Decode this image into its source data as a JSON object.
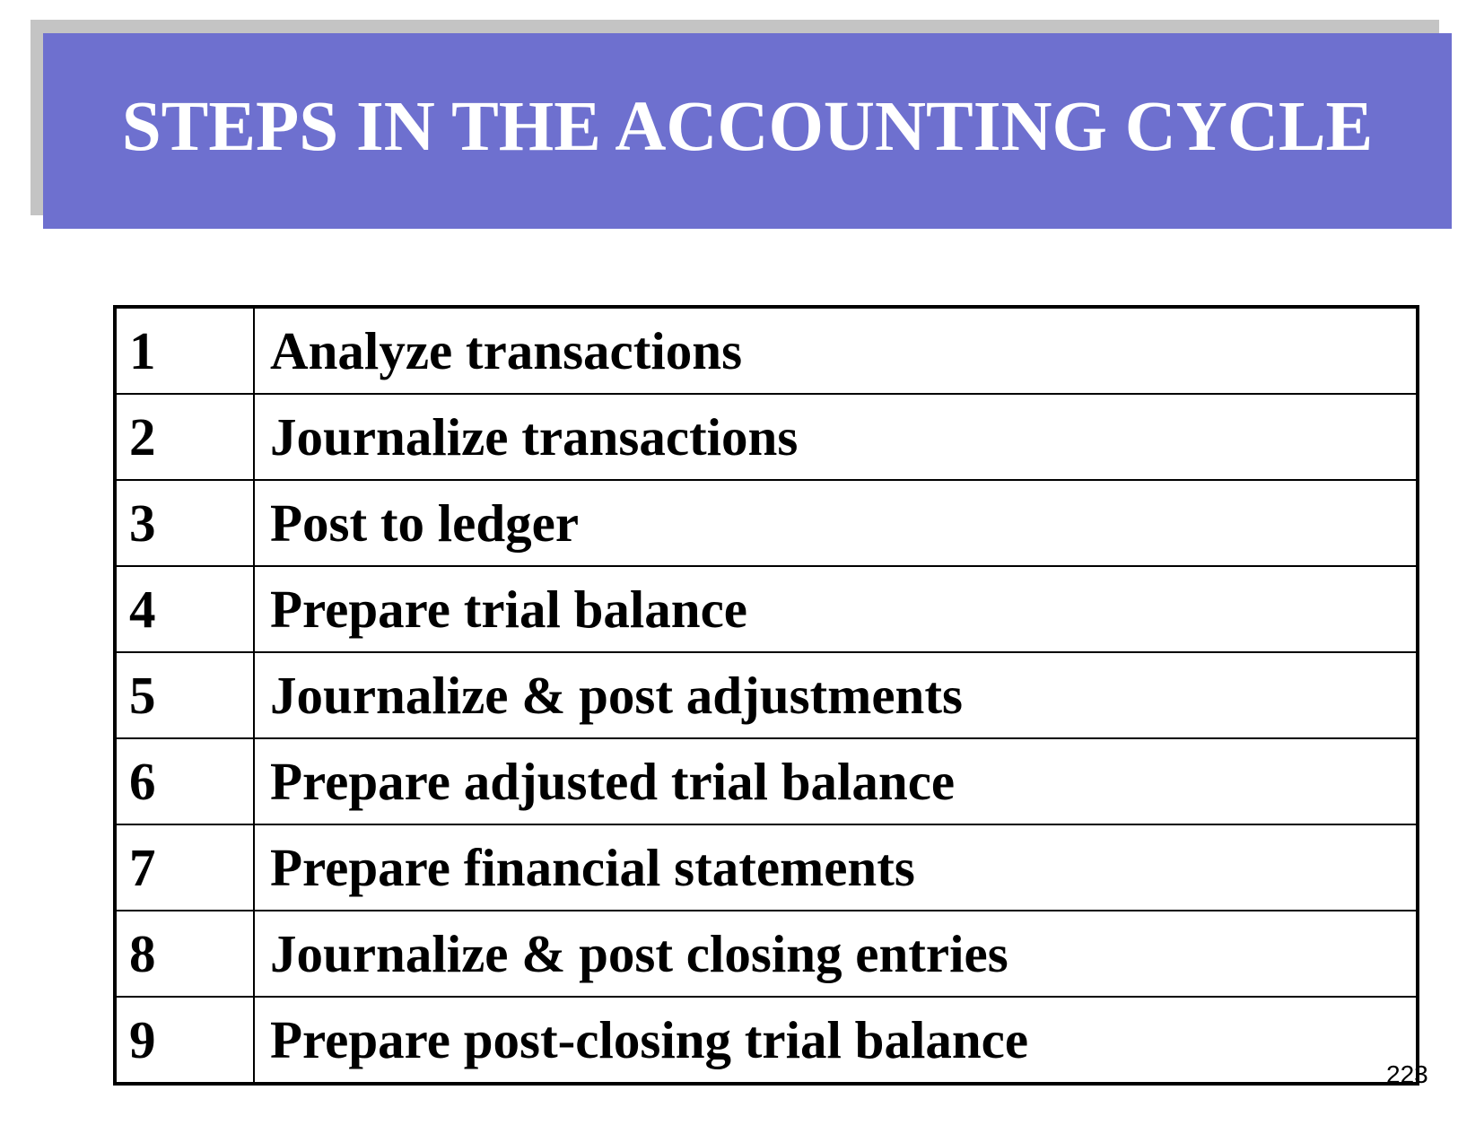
{
  "slide": {
    "title": "STEPS IN THE ACCOUNTING CYCLE",
    "page_number": "223"
  },
  "steps": [
    {
      "number": "1",
      "description": "Analyze transactions"
    },
    {
      "number": "2",
      "description": "Journalize transactions"
    },
    {
      "number": "3",
      "description": "Post to ledger"
    },
    {
      "number": "4",
      "description": "Prepare trial balance"
    },
    {
      "number": "5",
      "description": "Journalize & post adjustments"
    },
    {
      "number": "6",
      "description": "Prepare adjusted trial balance"
    },
    {
      "number": "7",
      "description": "Prepare financial statements"
    },
    {
      "number": "8",
      "description": "Journalize & post closing entries"
    },
    {
      "number": "9",
      "description": "Prepare post-closing trial balance"
    }
  ],
  "colors": {
    "title_bar": "#6e70cf",
    "title_shadow": "#c4c4c4",
    "title_text": "#ffffff"
  }
}
